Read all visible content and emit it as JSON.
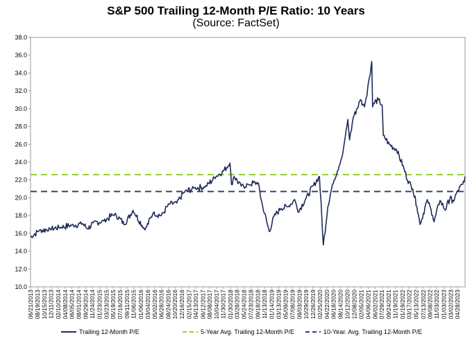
{
  "chart_data": {
    "type": "line",
    "title": "S&P 500 Trailing 12-Month P/E Ratio: 10 Years",
    "subtitle": "(Source: FactSet)",
    "xlabel": "",
    "ylabel": "",
    "ylim": [
      10.0,
      38.0
    ],
    "y_ticks": [
      "10.0",
      "12.0",
      "14.0",
      "16.0",
      "18.0",
      "20.0",
      "22.0",
      "24.0",
      "26.0",
      "28.0",
      "30.0",
      "32.0",
      "34.0",
      "36.0",
      "38.0"
    ],
    "x_tick_labels": [
      "06/21/2013",
      "08/19/2013",
      "10/15/2013",
      "12/11/2013",
      "02/10/2014",
      "04/08/2014",
      "06/05/2014",
      "08/01/2014",
      "09/29/2014",
      "11/24/2014",
      "01/23/2015",
      "03/23/2015",
      "05/19/2015",
      "07/16/2015",
      "09/11/2015",
      "11/06/2015",
      "01/06/2016",
      "03/04/2016",
      "05/02/2016",
      "06/28/2016",
      "08/24/2016",
      "10/20/2016",
      "12/16/2016",
      "02/15/2017",
      "04/13/2017",
      "06/12/2017",
      "08/08/2017",
      "10/04/2017",
      "11/30/2017",
      "01/30/2018",
      "03/28/2018",
      "05/24/2018",
      "07/23/2018",
      "09/18/2018",
      "11/13/2018",
      "01/14/2019",
      "03/13/2019",
      "05/09/2019",
      "07/08/2019",
      "09/03/2019",
      "10/29/2019",
      "12/26/2019",
      "02/25/2020",
      "04/22/2020",
      "06/18/2020",
      "08/14/2020",
      "10/12/2020",
      "12/08/2020",
      "02/05/2021",
      "04/06/2021",
      "06/02/2021",
      "07/29/2021",
      "09/24/2021",
      "11/19/2021",
      "01/19/2022",
      "03/17/2022",
      "05/13/2022",
      "07/13/2022",
      "09/08/2022",
      "11/03/2022",
      "01/03/2023",
      "03/02/2023",
      "04/28/2023"
    ],
    "series": [
      {
        "name": "Trailing 12-Month P/E",
        "color": "#1f2a55",
        "style": "solid",
        "x": [
          "06/21/2013",
          "09/01/2013",
          "12/01/2013",
          "03/01/2014",
          "06/01/2014",
          "09/01/2014",
          "10/15/2014",
          "12/01/2014",
          "03/01/2015",
          "06/01/2015",
          "08/24/2015",
          "11/01/2015",
          "02/11/2016",
          "04/20/2016",
          "06/27/2016",
          "09/01/2016",
          "11/04/2016",
          "01/01/2017",
          "04/01/2017",
          "07/01/2017",
          "10/01/2017",
          "12/01/2017",
          "01/26/2018",
          "02/08/2018",
          "03/01/2018",
          "05/01/2018",
          "07/01/2018",
          "09/20/2018",
          "10/29/2018",
          "12/24/2018",
          "01/31/2019",
          "03/31/2019",
          "05/31/2019",
          "07/26/2019",
          "08/23/2019",
          "10/31/2019",
          "12/31/2019",
          "02/19/2020",
          "03/23/2020",
          "04/30/2020",
          "06/08/2020",
          "08/31/2020",
          "09/23/2020",
          "10/15/2020",
          "10/30/2020",
          "11/30/2020",
          "01/31/2021",
          "03/04/2021",
          "04/15/2021",
          "05/05/2021",
          "05/12/2021",
          "05/31/2021",
          "06/30/2021",
          "07/31/2021",
          "08/10/2021",
          "09/30/2021",
          "11/30/2021",
          "01/31/2022",
          "03/01/2022",
          "04/15/2022",
          "05/20/2022",
          "06/16/2022",
          "08/16/2022",
          "09/30/2022",
          "10/12/2022",
          "12/01/2022",
          "01/15/2023",
          "03/01/2023",
          "03/13/2023",
          "05/01/2023",
          "06/10/2023",
          "06/30/2023"
        ],
        "y": [
          15.6,
          16.3,
          16.5,
          16.7,
          16.9,
          17.1,
          16.5,
          17.2,
          17.4,
          18.2,
          17.0,
          18.6,
          16.4,
          18.3,
          18.0,
          19.3,
          19.4,
          20.6,
          21.1,
          21.2,
          22.4,
          23.0,
          23.9,
          21.5,
          22.4,
          21.3,
          21.5,
          21.7,
          19.0,
          16.2,
          17.9,
          18.8,
          19.0,
          19.8,
          18.4,
          20.0,
          21.4,
          22.4,
          14.7,
          19.0,
          21.5,
          24.8,
          26.8,
          28.8,
          26.5,
          29.0,
          31.0,
          30.2,
          33.5,
          35.3,
          30.2,
          30.8,
          31.0,
          30.4,
          27.0,
          26.0,
          25.4,
          23.3,
          22.0,
          21.0,
          19.0,
          17.0,
          19.8,
          18.0,
          17.3,
          19.7,
          18.6,
          20.2,
          19.4,
          20.8,
          21.5,
          22.4
        ]
      },
      {
        "name": "5-Year Avg. Trailing 12-Month P/E",
        "color": "#99cc33",
        "style": "dashed",
        "y": 22.6
      },
      {
        "name": "10-Year. Avg. Trailing 12-Month P/E",
        "color": "#2e4270",
        "style": "dashed",
        "y": 20.7
      }
    ],
    "grid": false,
    "legend": "bottom"
  }
}
